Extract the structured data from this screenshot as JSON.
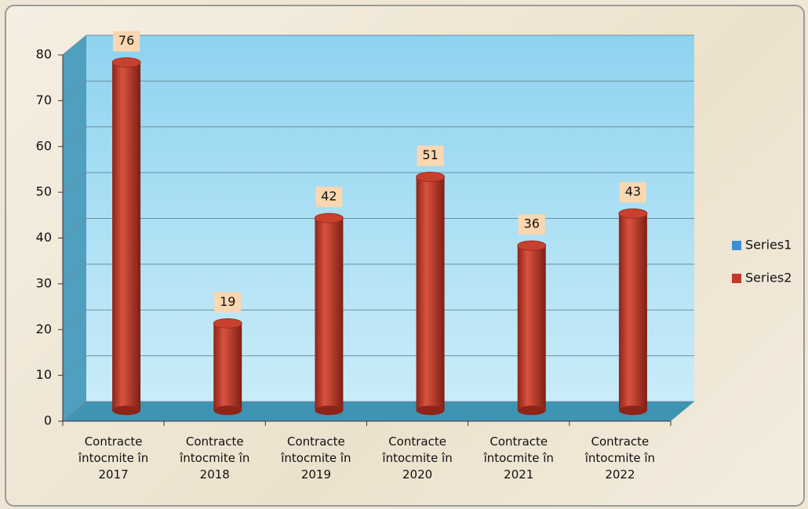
{
  "chart_data": {
    "type": "bar",
    "categories": [
      "Contracte întocmite în 2017",
      "Contracte întocmite în 2018",
      "Contracte întocmite în 2019",
      "Contracte întocmite în 2020",
      "Contracte întocmite în 2021",
      "Contracte întocmite în 2022"
    ],
    "series": [
      {
        "name": "Series1",
        "color": "#3f8fd2",
        "values": [
          null,
          null,
          null,
          null,
          null,
          null
        ]
      },
      {
        "name": "Series2",
        "color": "#c0392b",
        "values": [
          76,
          19,
          42,
          51,
          36,
          43
        ]
      }
    ],
    "ylim": [
      0,
      80
    ],
    "yticks": [
      0,
      10,
      20,
      30,
      40,
      50,
      60,
      70,
      80
    ],
    "grid": true,
    "legend": "right"
  }
}
